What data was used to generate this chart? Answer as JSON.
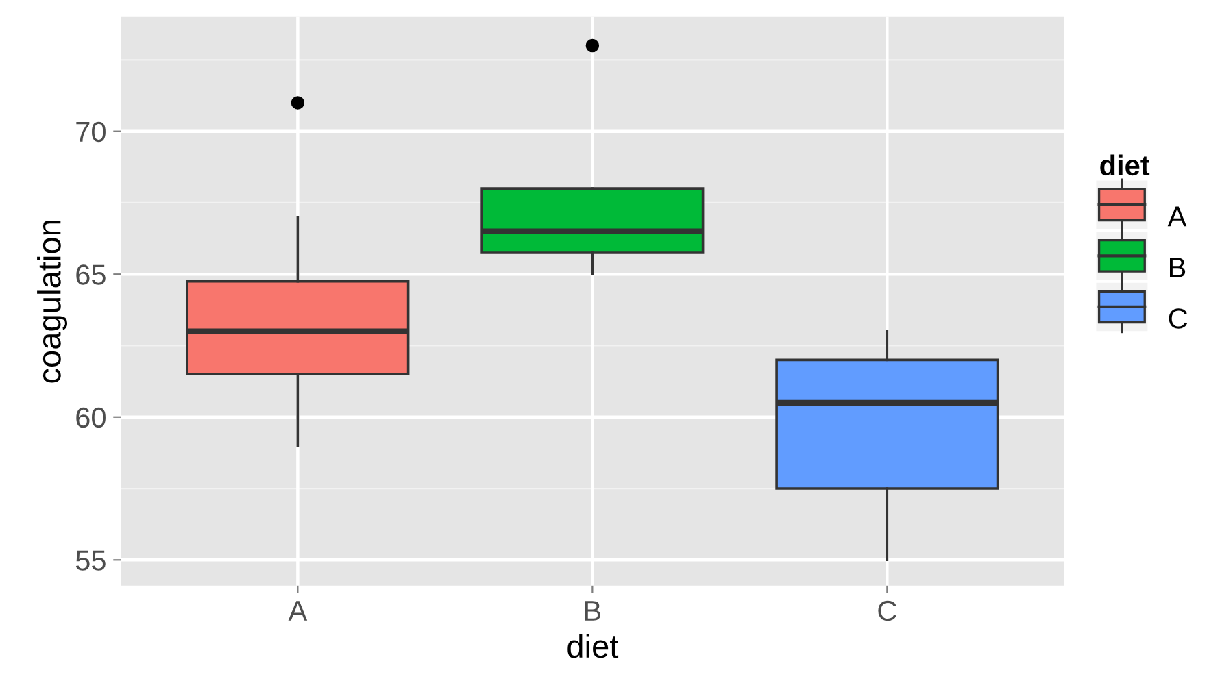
{
  "chart_data": {
    "type": "box",
    "xlabel": "diet",
    "ylabel": "coagulation",
    "legend_title": "diet",
    "categories": [
      "A",
      "B",
      "C"
    ],
    "series": [
      {
        "name": "A",
        "color": "#f8766d",
        "boxes": [
          {
            "low": 59,
            "q1": 61.5,
            "median": 63,
            "q3": 64.75,
            "high": 67,
            "outliers": [
              71
            ]
          },
          null,
          null
        ]
      },
      {
        "name": "B",
        "color": "#00ba38",
        "boxes": [
          null,
          {
            "low": 65,
            "q1": 65.75,
            "median": 66.5,
            "q3": 68,
            "high": 68,
            "outliers": [
              73
            ]
          },
          null
        ]
      },
      {
        "name": "C",
        "color": "#619cff",
        "boxes": [
          null,
          null,
          {
            "low": 55,
            "q1": 57.5,
            "median": 60.5,
            "q3": 62,
            "high": 63
          }
        ]
      }
    ],
    "ylim": [
      54.1,
      74
    ],
    "yticks": [
      55,
      60,
      65,
      70
    ],
    "grid": true,
    "legend": "right"
  }
}
